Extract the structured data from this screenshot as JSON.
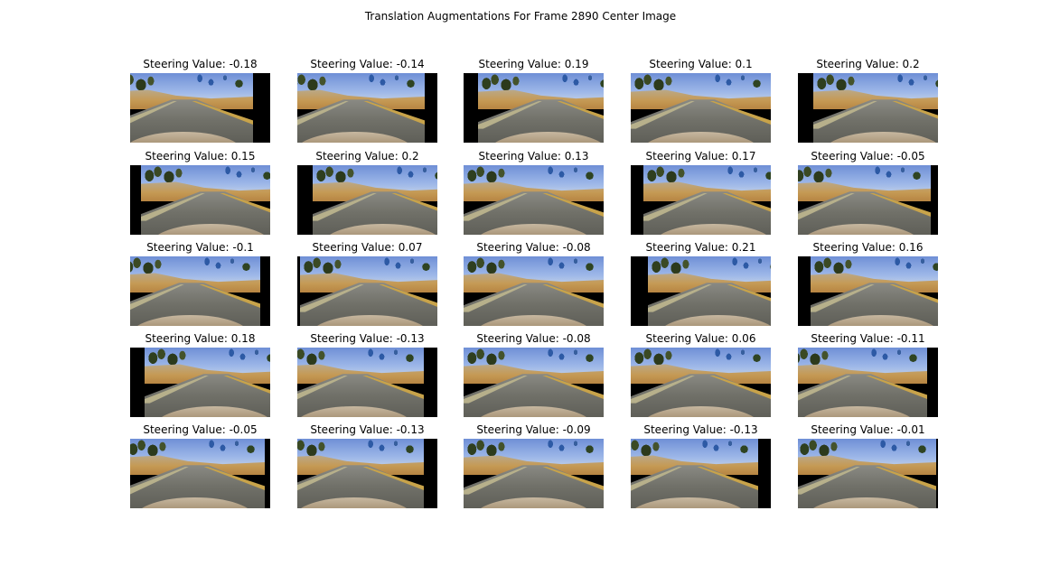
{
  "figure_title": "Translation Augmentations For Frame 2890 Center Image",
  "image_alt": "dashcam road frame",
  "rows": [
    [
      {
        "label": "Steering Value: -0.18",
        "shift": -0.12
      },
      {
        "label": "Steering Value: -0.14",
        "shift": -0.09
      },
      {
        "label": "Steering Value: 0.19",
        "shift": 0.1
      },
      {
        "label": "Steering Value: 0.1",
        "shift": 0.0
      },
      {
        "label": "Steering Value: 0.2",
        "shift": 0.11
      }
    ],
    [
      {
        "label": "Steering Value: 0.15",
        "shift": 0.08
      },
      {
        "label": "Steering Value: 0.2",
        "shift": 0.11
      },
      {
        "label": "Steering Value: 0.13",
        "shift": 0.0
      },
      {
        "label": "Steering Value: 0.17",
        "shift": 0.09
      },
      {
        "label": "Steering Value: -0.05",
        "shift": -0.05
      }
    ],
    [
      {
        "label": "Steering Value: -0.1",
        "shift": -0.07
      },
      {
        "label": "Steering Value: 0.07",
        "shift": 0.02
      },
      {
        "label": "Steering Value: -0.08",
        "shift": 0.0
      },
      {
        "label": "Steering Value: 0.21",
        "shift": 0.12
      },
      {
        "label": "Steering Value: 0.16",
        "shift": 0.09
      }
    ],
    [
      {
        "label": "Steering Value: 0.18",
        "shift": 0.1
      },
      {
        "label": "Steering Value: -0.13",
        "shift": -0.1
      },
      {
        "label": "Steering Value: -0.08",
        "shift": 0.0
      },
      {
        "label": "Steering Value: 0.06",
        "shift": 0.0
      },
      {
        "label": "Steering Value: -0.11",
        "shift": -0.08
      }
    ],
    [
      {
        "label": "Steering Value: -0.05",
        "shift": -0.04
      },
      {
        "label": "Steering Value: -0.13",
        "shift": -0.1
      },
      {
        "label": "Steering Value: -0.09",
        "shift": 0.0
      },
      {
        "label": "Steering Value: -0.13",
        "shift": -0.09
      },
      {
        "label": "Steering Value: -0.01",
        "shift": -0.01
      }
    ]
  ]
}
